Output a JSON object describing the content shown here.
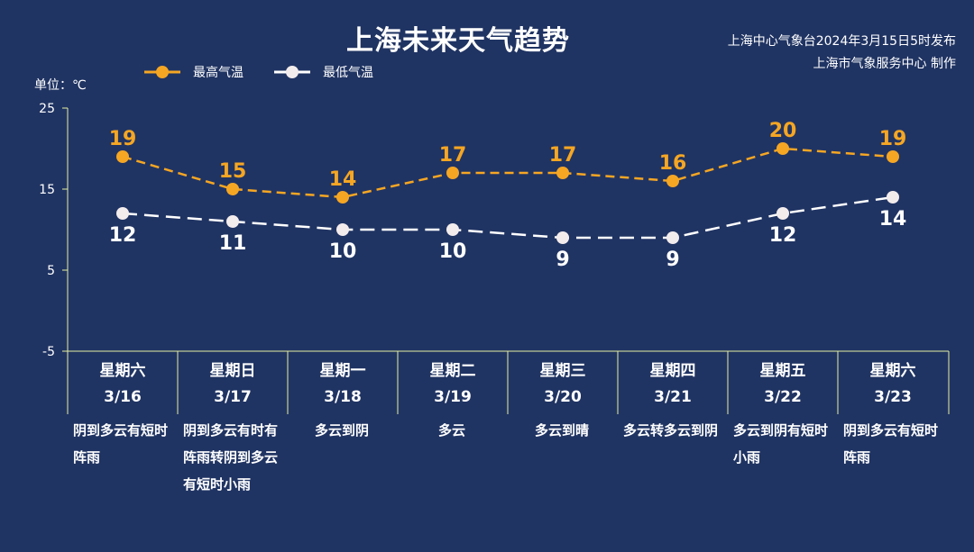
{
  "header": {
    "title": "上海未来天气趋势",
    "publisher_line1": "上海中心气象台2024年3月15日5时发布",
    "publisher_line2": "上海市气象服务中心 制作"
  },
  "unit_label": "单位：℃",
  "colors": {
    "background": "#203463",
    "high": "#f5a623",
    "low": "#ffffff",
    "axis": "#e6f0a0"
  },
  "chart_data": {
    "type": "line",
    "categories": [
      "3/16",
      "3/17",
      "3/18",
      "3/19",
      "3/20",
      "3/21",
      "3/22",
      "3/23"
    ],
    "weekdays": [
      "星期六",
      "星期日",
      "星期一",
      "星期二",
      "星期三",
      "星期四",
      "星期五",
      "星期六"
    ],
    "weather": [
      "阴到多云有短时阵雨",
      "阴到多云有时有阵雨转阴到多云有短时小雨",
      "多云到阴",
      "多云",
      "多云到晴",
      "多云转多云到阴",
      "多云到阴有短时小雨",
      "阴到多云有短时阵雨"
    ],
    "series": [
      {
        "name": "最高气温",
        "values": [
          19,
          15,
          14,
          17,
          17,
          16,
          20,
          19
        ]
      },
      {
        "name": "最低气温",
        "values": [
          12,
          11,
          10,
          10,
          9,
          9,
          12,
          14
        ]
      }
    ],
    "ylim": [
      -5,
      25
    ],
    "yticks": [
      25,
      15,
      5,
      -5
    ],
    "legend_position": "top-left"
  }
}
